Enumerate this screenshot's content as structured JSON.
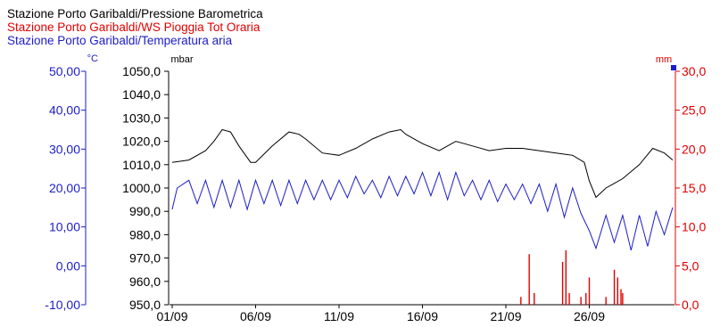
{
  "chart_data": {
    "type": "line",
    "title_lines": [
      {
        "text": "Stazione Porto Garibaldi/Pressione Barometrica",
        "color": "#000000"
      },
      {
        "text": "Stazione Porto Garibaldi/WS Pioggia Tot Oraria",
        "color": "#e00000"
      },
      {
        "text": "Stazione Porto Garibaldi/Temperatura aria",
        "color": "#1c1cc8"
      }
    ],
    "axes": {
      "temperature": {
        "unit": "°C",
        "color": "#1c1cc8",
        "ylim": [
          -10,
          50
        ],
        "ticks": [
          "50,00",
          "40,00",
          "30,00",
          "20,00",
          "10,00",
          "0,00",
          "-10,00"
        ]
      },
      "pressure": {
        "unit": "mbar",
        "color": "#000000",
        "ylim": [
          950,
          1050
        ],
        "ticks": [
          "1050,0",
          "1040,0",
          "1030,0",
          "1020,0",
          "1010,0",
          "1000,0",
          "990,0",
          "980,0",
          "970,0",
          "960,0",
          "950,0"
        ]
      },
      "rain": {
        "unit": "mm",
        "color": "#e00000",
        "ylim": [
          0,
          30
        ],
        "ticks": [
          "30,0",
          "25,0",
          "20,0",
          "15,0",
          "10,0",
          "5,0",
          "0,0"
        ]
      }
    },
    "x": {
      "start_day": 1,
      "end_day": 31,
      "ticks": [
        {
          "day": 1,
          "label": "01/09"
        },
        {
          "day": 6,
          "label": "06/09"
        },
        {
          "day": 11,
          "label": "11/09"
        },
        {
          "day": 16,
          "label": "16/09"
        },
        {
          "day": 21,
          "label": "21/09"
        },
        {
          "day": 26,
          "label": "26/09"
        }
      ]
    },
    "series": [
      {
        "name": "Stazione Porto Garibaldi/Pressione Barometrica",
        "axis": "pressure",
        "color": "#000000",
        "points": [
          [
            1,
            1011
          ],
          [
            2,
            1012
          ],
          [
            3,
            1016
          ],
          [
            3.5,
            1020
          ],
          [
            4,
            1025
          ],
          [
            4.5,
            1024
          ],
          [
            5,
            1018
          ],
          [
            5.7,
            1011
          ],
          [
            6,
            1011
          ],
          [
            7,
            1018
          ],
          [
            8,
            1024
          ],
          [
            8.6,
            1023
          ],
          [
            9,
            1021
          ],
          [
            10,
            1015
          ],
          [
            11,
            1014
          ],
          [
            12,
            1017
          ],
          [
            13,
            1021
          ],
          [
            14,
            1024
          ],
          [
            14.7,
            1025
          ],
          [
            15,
            1023
          ],
          [
            16,
            1019
          ],
          [
            17,
            1016
          ],
          [
            17.5,
            1018
          ],
          [
            18,
            1020
          ],
          [
            18.5,
            1019
          ],
          [
            19,
            1018
          ],
          [
            20,
            1016
          ],
          [
            21,
            1017
          ],
          [
            22,
            1017
          ],
          [
            23,
            1016
          ],
          [
            24,
            1015
          ],
          [
            25,
            1014
          ],
          [
            25.7,
            1011
          ],
          [
            26,
            1003
          ],
          [
            26.4,
            996
          ],
          [
            27,
            1000
          ],
          [
            27.5,
            1002
          ],
          [
            28,
            1004
          ],
          [
            29,
            1010
          ],
          [
            29.8,
            1017
          ],
          [
            30.5,
            1015
          ],
          [
            31,
            1012
          ]
        ]
      },
      {
        "name": "Stazione Porto Garibaldi/Temperatura aria",
        "axis": "temperature",
        "color": "#1c1cc8",
        "points": [
          [
            1,
            14.5
          ],
          [
            1.3,
            20
          ],
          [
            2,
            22
          ],
          [
            2.5,
            16
          ],
          [
            3,
            22
          ],
          [
            3.5,
            15
          ],
          [
            4,
            22
          ],
          [
            4.5,
            15
          ],
          [
            5,
            22
          ],
          [
            5.5,
            14.5
          ],
          [
            6,
            22
          ],
          [
            6.5,
            16
          ],
          [
            7,
            22
          ],
          [
            7.5,
            15.5
          ],
          [
            8,
            22
          ],
          [
            8.5,
            16
          ],
          [
            9,
            22
          ],
          [
            9.5,
            17
          ],
          [
            10,
            22
          ],
          [
            10.5,
            17
          ],
          [
            11,
            22
          ],
          [
            11.5,
            17.5
          ],
          [
            12,
            23
          ],
          [
            12.5,
            18.5
          ],
          [
            13,
            22
          ],
          [
            13.5,
            17.5
          ],
          [
            14,
            23
          ],
          [
            14.5,
            18
          ],
          [
            15,
            23
          ],
          [
            15.5,
            18.5
          ],
          [
            16,
            24
          ],
          [
            16.5,
            18
          ],
          [
            17,
            24
          ],
          [
            17.5,
            17
          ],
          [
            18,
            24
          ],
          [
            18.5,
            18
          ],
          [
            19,
            22
          ],
          [
            19.5,
            17
          ],
          [
            20,
            22
          ],
          [
            20.5,
            16.5
          ],
          [
            21,
            21
          ],
          [
            21.5,
            17
          ],
          [
            22,
            21
          ],
          [
            22.5,
            16
          ],
          [
            23,
            21
          ],
          [
            23.5,
            14
          ],
          [
            24,
            21
          ],
          [
            24.5,
            12.5
          ],
          [
            25,
            20
          ],
          [
            25.5,
            13.5
          ],
          [
            26,
            9
          ],
          [
            26.4,
            4.5
          ],
          [
            27,
            13
          ],
          [
            27.5,
            6
          ],
          [
            28,
            13
          ],
          [
            28.5,
            4
          ],
          [
            29,
            13
          ],
          [
            29.5,
            5
          ],
          [
            30,
            14
          ],
          [
            30.5,
            8
          ],
          [
            31,
            15
          ]
        ]
      },
      {
        "name": "Stazione Porto Garibaldi/WS Pioggia Tot Oraria",
        "axis": "rain",
        "color": "#e00000",
        "style": "bars",
        "points": [
          [
            21.9,
            1
          ],
          [
            22.4,
            6.5
          ],
          [
            22.7,
            1.5
          ],
          [
            24.4,
            5.5
          ],
          [
            24.6,
            7
          ],
          [
            24.8,
            1.5
          ],
          [
            25.5,
            1
          ],
          [
            25.8,
            1.5
          ],
          [
            26.0,
            3.5
          ],
          [
            27.0,
            1
          ],
          [
            27.5,
            4.5
          ],
          [
            27.7,
            3.5
          ],
          [
            27.9,
            2
          ],
          [
            28.0,
            1.5
          ]
        ]
      }
    ]
  }
}
